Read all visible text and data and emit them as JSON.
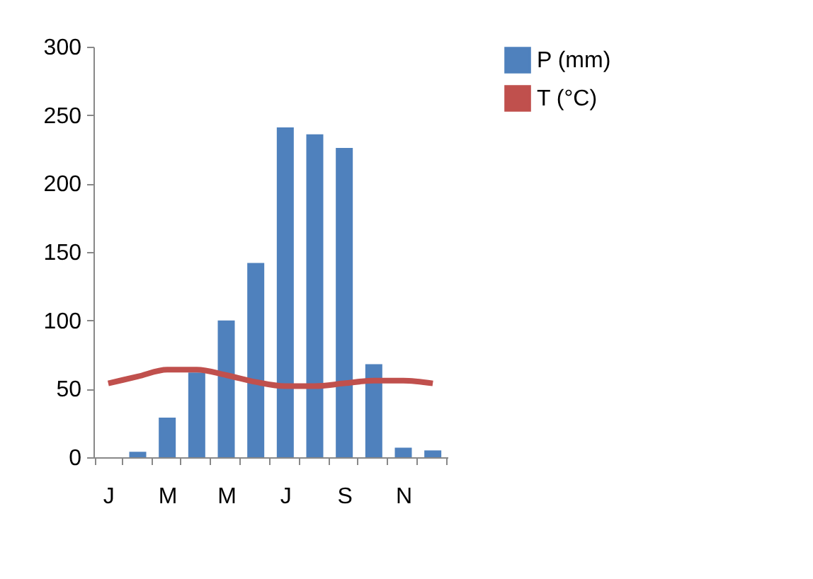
{
  "chart_data": {
    "type": "bar",
    "categories": [
      "J",
      null,
      "M",
      null,
      "M",
      null,
      "J",
      null,
      "S",
      null,
      "N",
      null
    ],
    "series": [
      {
        "name": "P (mm)",
        "color": "#4f81bd",
        "values": [
          0,
          4,
          29,
          62,
          100,
          142,
          241,
          236,
          226,
          68,
          7,
          5
        ]
      },
      {
        "name": "T (°C)",
        "type": "line",
        "color": "#c0504d",
        "values": [
          54,
          59,
          64,
          64,
          60,
          55,
          52,
          52,
          54,
          56,
          56,
          54
        ]
      }
    ],
    "ylim": [
      0,
      300
    ],
    "yticks": [
      0,
      50,
      100,
      150,
      200,
      250,
      300
    ],
    "grid": false,
    "legend": "right",
    "marker": "none",
    "line_style": "solid"
  }
}
